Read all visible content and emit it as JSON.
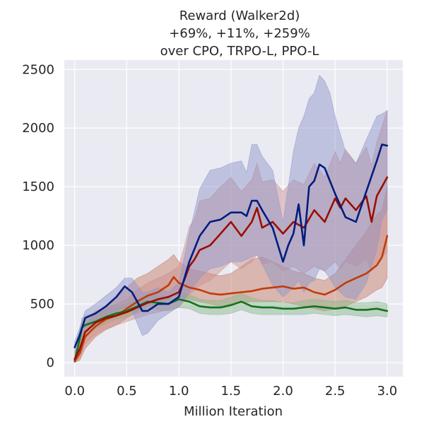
{
  "chart_data": {
    "type": "line",
    "title": [
      "Reward (Walker2d)",
      "+69%, +11%, +259%",
      "over CPO, TRPO-L, PPO-L"
    ],
    "xlabel": "Million Iteration",
    "ylabel": "",
    "xlim": [
      -0.1,
      3.15
    ],
    "ylim": [
      -120,
      2580
    ],
    "xticks": [
      0.0,
      0.5,
      1.0,
      1.5,
      2.0,
      2.5,
      3.0
    ],
    "xtick_labels": [
      "0.0",
      "0.5",
      "1.0",
      "1.5",
      "2.0",
      "2.5",
      "3.0"
    ],
    "yticks": [
      0,
      500,
      1000,
      1500,
      2000,
      2500
    ],
    "ytick_labels": [
      "0",
      "500",
      "1000",
      "1500",
      "2000",
      "2500"
    ],
    "grid": true,
    "background": "#eaeaf2",
    "series": [
      {
        "color": "#c03c07",
        "band_color": "#c67860",
        "x": [
          0.0,
          0.05,
          0.1,
          0.2,
          0.3,
          0.4,
          0.5,
          0.6,
          0.7,
          0.8,
          0.9,
          0.95,
          1.0,
          1.1,
          1.2,
          1.3,
          1.4,
          1.5,
          1.6,
          1.7,
          1.8,
          1.9,
          2.0,
          2.1,
          2.2,
          2.3,
          2.4,
          2.5,
          2.6,
          2.7,
          2.8,
          2.9,
          2.95,
          3.0
        ],
        "y": [
          10,
          80,
          220,
          310,
          370,
          400,
          460,
          520,
          570,
          600,
          660,
          730,
          680,
          640,
          620,
          590,
          580,
          590,
          600,
          610,
          630,
          640,
          650,
          630,
          640,
          600,
          580,
          620,
          680,
          720,
          760,
          830,
          900,
          1080
        ],
        "lower": [
          0,
          20,
          120,
          220,
          280,
          320,
          380,
          440,
          480,
          500,
          540,
          580,
          560,
          540,
          520,
          500,
          480,
          500,
          510,
          520,
          520,
          520,
          520,
          500,
          480,
          460,
          440,
          460,
          480,
          520,
          560,
          620,
          640,
          720
        ],
        "upper": [
          40,
          160,
          320,
          420,
          480,
          560,
          640,
          720,
          760,
          820,
          880,
          920,
          860,
          800,
          780,
          760,
          740,
          760,
          820,
          880,
          900,
          860,
          820,
          780,
          760,
          720,
          700,
          760,
          880,
          1000,
          1120,
          1260,
          1300,
          1500
        ]
      },
      {
        "color": "#14711e",
        "band_color": "#84b788",
        "x": [
          0.0,
          0.03,
          0.07,
          0.1,
          0.2,
          0.3,
          0.4,
          0.5,
          0.6,
          0.7,
          0.8,
          0.9,
          1.0,
          1.1,
          1.2,
          1.3,
          1.4,
          1.5,
          1.6,
          1.7,
          1.8,
          1.9,
          2.0,
          2.1,
          2.2,
          2.3,
          2.4,
          2.5,
          2.6,
          2.7,
          2.8,
          2.9,
          3.0
        ],
        "y": [
          20,
          130,
          300,
          320,
          350,
          390,
          420,
          440,
          480,
          520,
          510,
          500,
          540,
          520,
          480,
          470,
          470,
          490,
          520,
          480,
          470,
          470,
          460,
          460,
          470,
          480,
          470,
          460,
          470,
          450,
          450,
          460,
          440
        ],
        "lower": [
          0,
          60,
          220,
          240,
          290,
          330,
          370,
          390,
          420,
          460,
          450,
          440,
          470,
          460,
          420,
          410,
          410,
          420,
          450,
          420,
          410,
          410,
          410,
          410,
          410,
          420,
          410,
          400,
          410,
          400,
          390,
          400,
          390
        ],
        "upper": [
          50,
          200,
          380,
          400,
          420,
          460,
          480,
          500,
          540,
          580,
          570,
          560,
          600,
          580,
          540,
          530,
          530,
          560,
          590,
          550,
          530,
          530,
          510,
          510,
          530,
          540,
          530,
          520,
          530,
          510,
          510,
          520,
          500
        ]
      },
      {
        "color": "#9a0e00",
        "band_color": "#cc8f8c",
        "x": [
          0.0,
          0.05,
          0.1,
          0.2,
          0.3,
          0.4,
          0.5,
          0.6,
          0.7,
          0.8,
          0.9,
          1.0,
          1.05,
          1.1,
          1.15,
          1.2,
          1.3,
          1.4,
          1.5,
          1.6,
          1.7,
          1.75,
          1.8,
          1.9,
          2.0,
          2.1,
          2.2,
          2.3,
          2.4,
          2.5,
          2.55,
          2.6,
          2.7,
          2.8,
          2.85,
          2.9,
          3.0
        ],
        "y": [
          30,
          120,
          260,
          340,
          380,
          400,
          430,
          470,
          510,
          540,
          560,
          600,
          700,
          820,
          880,
          960,
          1000,
          1100,
          1200,
          1080,
          1200,
          1320,
          1150,
          1200,
          1100,
          1200,
          1150,
          1300,
          1200,
          1400,
          1320,
          1400,
          1300,
          1420,
          1200,
          1420,
          1580
        ],
        "lower": [
          0,
          40,
          160,
          240,
          290,
          320,
          350,
          380,
          410,
          430,
          450,
          470,
          520,
          580,
          620,
          660,
          700,
          780,
          860,
          800,
          860,
          920,
          840,
          860,
          780,
          820,
          760,
          820,
          780,
          860,
          800,
          860,
          820,
          880,
          780,
          860,
          940
        ],
        "upper": [
          80,
          220,
          360,
          440,
          470,
          500,
          540,
          620,
          680,
          720,
          760,
          820,
          980,
          1160,
          1220,
          1380,
          1400,
          1500,
          1580,
          1460,
          1560,
          1700,
          1540,
          1560,
          1460,
          1560,
          1520,
          1700,
          1580,
          1800,
          1700,
          1820,
          1700,
          1840,
          1680,
          1880,
          2150
        ]
      },
      {
        "color": "#001c7f",
        "band_color": "#8c93c8",
        "x": [
          0.0,
          0.05,
          0.1,
          0.2,
          0.3,
          0.4,
          0.48,
          0.55,
          0.65,
          0.7,
          0.8,
          0.9,
          1.0,
          1.1,
          1.2,
          1.3,
          1.4,
          1.5,
          1.6,
          1.65,
          1.7,
          1.75,
          1.8,
          1.9,
          2.0,
          2.05,
          2.1,
          2.15,
          2.2,
          2.25,
          2.3,
          2.35,
          2.4,
          2.45,
          2.5,
          2.6,
          2.7,
          2.8,
          2.9,
          2.95,
          3.0
        ],
        "y": [
          130,
          240,
          380,
          420,
          480,
          560,
          650,
          600,
          440,
          440,
          500,
          500,
          560,
          860,
          1080,
          1200,
          1220,
          1280,
          1280,
          1250,
          1380,
          1380,
          1300,
          1150,
          860,
          1000,
          1100,
          1350,
          1000,
          1500,
          1550,
          1690,
          1660,
          1550,
          1440,
          1240,
          1200,
          1460,
          1720,
          1860,
          1850
        ],
        "lower": [
          80,
          180,
          300,
          340,
          390,
          440,
          470,
          440,
          230,
          250,
          360,
          420,
          480,
          600,
          720,
          800,
          820,
          860,
          860,
          880,
          900,
          920,
          840,
          660,
          560,
          600,
          640,
          700,
          600,
          680,
          700,
          800,
          780,
          720,
          640,
          560,
          540,
          680,
          960,
          1220,
          1300
        ],
        "upper": [
          180,
          300,
          440,
          500,
          570,
          640,
          720,
          720,
          600,
          600,
          640,
          600,
          680,
          1100,
          1480,
          1640,
          1660,
          1700,
          1720,
          1620,
          1860,
          1860,
          1760,
          1640,
          1200,
          1500,
          1800,
          2000,
          2100,
          2250,
          2300,
          2450,
          2400,
          2300,
          2100,
          1800,
          1700,
          1900,
          2100,
          2120,
          2150
        ]
      }
    ]
  }
}
